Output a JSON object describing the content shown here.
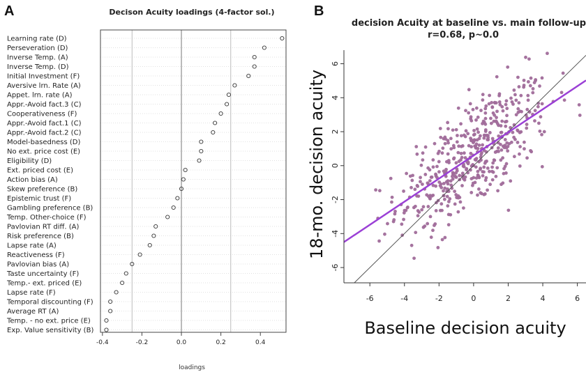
{
  "panels": {
    "a_letter": "A",
    "b_letter": "B"
  },
  "chart_data": [
    {
      "type": "scatter",
      "title": "Decison Acuity loadings (4-factor sol.)",
      "xlabel": "loadings",
      "ylabel": "",
      "xlim": [
        -0.41,
        0.53
      ],
      "xticks": [
        -0.4,
        -0.2,
        0.0,
        0.2,
        0.4
      ],
      "xtick_labels": [
        "-0.4",
        "-0.2",
        "0.0",
        "0.2",
        "0.4"
      ],
      "vlines": [
        -0.25,
        0.0,
        0.25
      ],
      "grid": "horizontal dotted",
      "points": [
        {
          "label": "Learning rate (D)",
          "x": 0.51
        },
        {
          "label": "Perseveration (D)",
          "x": 0.42
        },
        {
          "label": "Inverse Temp. (A)",
          "x": 0.37
        },
        {
          "label": "Inverse Temp. (D)",
          "x": 0.37
        },
        {
          "label": "Initial Investment (F)",
          "x": 0.34
        },
        {
          "label": "Aversive lrn. Rate (A)",
          "x": 0.27
        },
        {
          "label": "Appet. lrn. rate (A)",
          "x": 0.24
        },
        {
          "label": "Appr.-Avoid fact.3 (C)",
          "x": 0.23
        },
        {
          "label": "Cooperativeness (F)",
          "x": 0.2
        },
        {
          "label": "Appr.-Avoid fact.1 (C)",
          "x": 0.17
        },
        {
          "label": "Appr.-Avoid fact.2 (C)",
          "x": 0.16
        },
        {
          "label": "Model-basedness (D)",
          "x": 0.1
        },
        {
          "label": "No ext. price cost (E)",
          "x": 0.1
        },
        {
          "label": "Eligibility (D)",
          "x": 0.09
        },
        {
          "label": "Ext. priced cost (E)",
          "x": 0.02
        },
        {
          "label": "Action bias (A)",
          "x": 0.01
        },
        {
          "label": "Skew preference (B)",
          "x": 0.0
        },
        {
          "label": "Epistemic trust (F)",
          "x": -0.02
        },
        {
          "label": "Gambling preference (B)",
          "x": -0.04
        },
        {
          "label": "Temp. Other-choice (F)",
          "x": -0.07
        },
        {
          "label": "Pavlovian RT diff. (A)",
          "x": -0.13
        },
        {
          "label": "Risk preference (B)",
          "x": -0.14
        },
        {
          "label": "Lapse rate (A)",
          "x": -0.16
        },
        {
          "label": "Reactiveness (F)",
          "x": -0.21
        },
        {
          "label": "Pavlovian bias (A)",
          "x": -0.25
        },
        {
          "label": "Taste uncertainty (F)",
          "x": -0.28
        },
        {
          "label": "Temp.- ext. priced (E)",
          "x": -0.3
        },
        {
          "label": "Lapse rate (F)",
          "x": -0.33
        },
        {
          "label": "Temporal discounting (F)",
          "x": -0.36
        },
        {
          "label": "Average RT (A)",
          "x": -0.36
        },
        {
          "label": "Temp. - no ext. price  (E)",
          "x": -0.38
        },
        {
          "label": "Exp. Value sensitivity (B)",
          "x": -0.38
        }
      ]
    },
    {
      "type": "scatter",
      "title": "decision Acuity at baseline vs. main follow-up",
      "subtitle": "r=0.68, p~0.0",
      "xlabel": "Baseline decision acuity",
      "ylabel": "18-mo. decision acuity",
      "xlim": [
        -7.5,
        6.5
      ],
      "ylim": [
        -6.9,
        6.8
      ],
      "xticks": [
        -6,
        -4,
        -2,
        0,
        2,
        4,
        6
      ],
      "xtick_labels": [
        "-6",
        "-4",
        "-2",
        "0",
        "2",
        "4",
        "6"
      ],
      "yticks": [
        -6,
        -4,
        -2,
        0,
        2,
        4,
        6
      ],
      "ytick_labels": [
        "-6",
        "-4",
        "-2",
        "0",
        "2",
        "4",
        "6"
      ],
      "n_points": 500,
      "correlation": 0.68,
      "point_color": "#a06b9a",
      "regression_line": {
        "slope": 0.68,
        "intercept": 0.6,
        "color": "#9b40d6"
      },
      "identity_line": {
        "slope": 1,
        "intercept": 0,
        "color": "#555555"
      }
    }
  ]
}
